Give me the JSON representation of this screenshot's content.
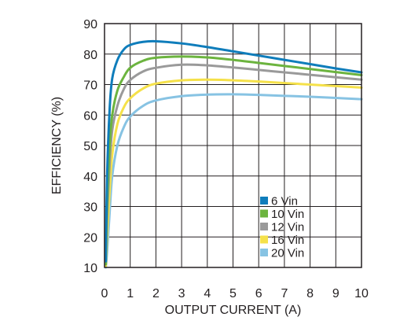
{
  "chart_data": {
    "type": "line",
    "xlabel": "OUTPUT CURRENT (A)",
    "ylabel": "EFFICIENCY (%)",
    "xlim": [
      0,
      10
    ],
    "ylim": [
      10,
      90
    ],
    "x_ticks": [
      "0",
      "1",
      "2",
      "3",
      "4",
      "5",
      "6",
      "7",
      "8",
      "9",
      "10"
    ],
    "y_ticks": [
      "10",
      "20",
      "30",
      "40",
      "50",
      "60",
      "70",
      "80",
      "90"
    ],
    "grid": true,
    "legend_position": "bottom-right",
    "series": [
      {
        "name": "6 Vin",
        "color": "#0f7dbb",
        "points": [
          [
            0.05,
            12
          ],
          [
            0.1,
            40
          ],
          [
            0.2,
            62
          ],
          [
            0.3,
            72
          ],
          [
            0.5,
            78
          ],
          [
            0.75,
            81.5
          ],
          [
            1,
            83
          ],
          [
            1.5,
            84
          ],
          [
            2,
            84.2
          ],
          [
            3,
            83.5
          ],
          [
            4,
            82.3
          ],
          [
            5,
            80.9
          ],
          [
            6,
            79.5
          ],
          [
            7,
            78.1
          ],
          [
            8,
            76.7
          ],
          [
            9,
            75.3
          ],
          [
            10,
            74
          ]
        ]
      },
      {
        "name": "10 Vin",
        "color": "#6cb43f",
        "points": [
          [
            0.05,
            11
          ],
          [
            0.1,
            30
          ],
          [
            0.2,
            50
          ],
          [
            0.3,
            60
          ],
          [
            0.5,
            68
          ],
          [
            0.75,
            72.5
          ],
          [
            1,
            75.5
          ],
          [
            1.5,
            77.8
          ],
          [
            2,
            78.8
          ],
          [
            3,
            79.2
          ],
          [
            4,
            78.9
          ],
          [
            5,
            78.1
          ],
          [
            6,
            77.1
          ],
          [
            7,
            76.1
          ],
          [
            8,
            75.1
          ],
          [
            9,
            74.1
          ],
          [
            10,
            73.1
          ]
        ]
      },
      {
        "name": "12 Vin",
        "color": "#9a9a9a",
        "points": [
          [
            0.05,
            11
          ],
          [
            0.1,
            26
          ],
          [
            0.2,
            44
          ],
          [
            0.3,
            55
          ],
          [
            0.5,
            63
          ],
          [
            0.75,
            68.5
          ],
          [
            1,
            71.5
          ],
          [
            1.5,
            74.3
          ],
          [
            2,
            75.5
          ],
          [
            3,
            76.5
          ],
          [
            4,
            76.3
          ],
          [
            5,
            75.6
          ],
          [
            6,
            74.8
          ],
          [
            7,
            74
          ],
          [
            8,
            73.2
          ],
          [
            9,
            72.4
          ],
          [
            10,
            71.6
          ]
        ]
      },
      {
        "name": "16 Vin",
        "color": "#f5e14a",
        "points": [
          [
            0.05,
            10.5
          ],
          [
            0.1,
            20
          ],
          [
            0.2,
            35
          ],
          [
            0.3,
            47
          ],
          [
            0.5,
            57
          ],
          [
            0.75,
            62.5
          ],
          [
            1,
            65.5
          ],
          [
            1.5,
            68.7
          ],
          [
            2,
            70.3
          ],
          [
            3,
            71.4
          ],
          [
            4,
            71.6
          ],
          [
            5,
            71.4
          ],
          [
            6,
            71
          ],
          [
            7,
            70.5
          ],
          [
            8,
            70
          ],
          [
            9,
            69.5
          ],
          [
            10,
            69
          ]
        ]
      },
      {
        "name": "20 Vin",
        "color": "#87c3e3",
        "points": [
          [
            0.05,
            10
          ],
          [
            0.1,
            15
          ],
          [
            0.2,
            28
          ],
          [
            0.3,
            40
          ],
          [
            0.5,
            50
          ],
          [
            0.75,
            56
          ],
          [
            1,
            59.5
          ],
          [
            1.5,
            63
          ],
          [
            2,
            64.8
          ],
          [
            3,
            66.2
          ],
          [
            4,
            66.7
          ],
          [
            5,
            66.8
          ],
          [
            6,
            66.6
          ],
          [
            7,
            66.3
          ],
          [
            8,
            66
          ],
          [
            9,
            65.6
          ],
          [
            10,
            65.2
          ]
        ]
      }
    ]
  }
}
